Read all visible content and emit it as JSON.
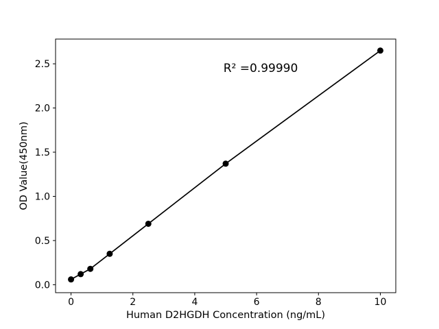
{
  "chart_data": {
    "type": "scatter",
    "title": "",
    "xlabel": "Human D2HGDH Concentration (ng/mL)",
    "ylabel": "OD Value(450nm)",
    "x": [
      0,
      0.3125,
      0.625,
      1.25,
      2.5,
      5,
      10
    ],
    "y": [
      0.06,
      0.12,
      0.18,
      0.35,
      0.69,
      1.37,
      2.65
    ],
    "series_name": "standard-curve",
    "fit_line": true,
    "annotation": {
      "text": "R² =0.99990",
      "r_squared": 0.9999
    },
    "xlim": [
      -0.5,
      10.5
    ],
    "ylim": [
      -0.09,
      2.78
    ],
    "xticks": [
      0,
      2,
      4,
      6,
      8,
      10
    ],
    "yticks": [
      0.0,
      0.5,
      1.0,
      1.5,
      2.0,
      2.5
    ],
    "grid": false,
    "legend_position": "none",
    "marker_color": "#000000",
    "line_color": "#000000",
    "axis_color": "#000000",
    "background_color": "#ffffff"
  }
}
